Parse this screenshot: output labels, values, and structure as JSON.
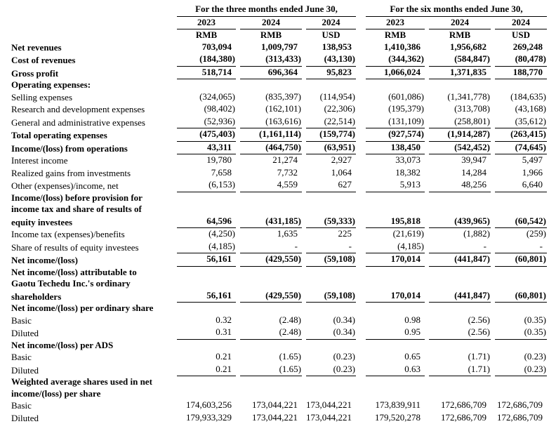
{
  "page": {
    "background_color": "#ffffff",
    "text_color": "#000000",
    "rule_color": "#000000"
  },
  "table": {
    "header": {
      "groups": [
        {
          "title": "For the three months ended June 30,"
        },
        {
          "title": "For the six months ended June 30,"
        }
      ],
      "years": [
        "2023",
        "2024",
        "2024",
        "2023",
        "2024",
        "2024"
      ],
      "currencies": [
        "RMB",
        "RMB",
        "USD",
        "RMB",
        "RMB",
        "USD"
      ]
    },
    "rows": [
      {
        "label": "Net revenues",
        "bold": true,
        "rule": false,
        "values": [
          "703,094",
          "1,009,797",
          "138,953",
          "1,410,386",
          "1,956,682",
          "269,248"
        ]
      },
      {
        "label": "Cost of revenues",
        "bold": true,
        "rule": true,
        "values": [
          "(184,380)",
          "(313,433)",
          "(43,130)",
          "(344,362)",
          "(584,847)",
          "(80,478)"
        ]
      },
      {
        "label": "Gross profit",
        "bold": true,
        "rule": true,
        "values": [
          "518,714",
          "696,364",
          "95,823",
          "1,066,024",
          "1,371,835",
          "188,770"
        ]
      },
      {
        "label": "Operating expenses:",
        "bold": true,
        "rule": false
      },
      {
        "label": "Selling expenses",
        "bold": false,
        "rule": false,
        "values": [
          "(324,065)",
          "(835,397)",
          "(114,954)",
          "(601,086)",
          "(1,341,778)",
          "(184,635)"
        ]
      },
      {
        "label": "Research and development expenses",
        "bold": false,
        "rule": false,
        "values": [
          "(98,402)",
          "(162,101)",
          "(22,306)",
          "(195,379)",
          "(313,708)",
          "(43,168)"
        ]
      },
      {
        "label": "General and administrative expenses",
        "bold": false,
        "rule": true,
        "values": [
          "(52,936)",
          "(163,616)",
          "(22,514)",
          "(131,109)",
          "(258,801)",
          "(35,612)"
        ]
      },
      {
        "label": "Total operating expenses",
        "bold": true,
        "rule": true,
        "values": [
          "(475,403)",
          "(1,161,114)",
          "(159,774)",
          "(927,574)",
          "(1,914,287)",
          "(263,415)"
        ]
      },
      {
        "label": "Income/(loss) from operations",
        "bold": true,
        "rule": true,
        "values": [
          "43,311",
          "(464,750)",
          "(63,951)",
          "138,450",
          "(542,452)",
          "(74,645)"
        ]
      },
      {
        "label": "Interest income",
        "bold": false,
        "rule": false,
        "values": [
          "19,780",
          "21,274",
          "2,927",
          "33,073",
          "39,947",
          "5,497"
        ]
      },
      {
        "label": "Realized gains from investments",
        "bold": false,
        "rule": false,
        "values": [
          "7,658",
          "7,732",
          "1,064",
          "18,382",
          "14,284",
          "1,966"
        ]
      },
      {
        "label": "Other (expenses)/income, net",
        "bold": false,
        "rule": true,
        "values": [
          "(6,153)",
          "4,559",
          "627",
          "5,913",
          "48,256",
          "6,640"
        ]
      },
      {
        "label": "Income/(loss) before provision for",
        "bold": true
      },
      {
        "label": "income tax and share of results of",
        "bold": true
      },
      {
        "label": "equity investees",
        "bold": true,
        "rule": true,
        "values": [
          "64,596",
          "(431,185)",
          "(59,333)",
          "195,818",
          "(439,965)",
          "(60,542)"
        ]
      },
      {
        "label": "Income tax (expenses)/benefits",
        "bold": false,
        "rule": false,
        "values": [
          "(4,250)",
          "1,635",
          "225",
          "(21,619)",
          "(1,882)",
          "(259)"
        ]
      },
      {
        "label": "Share of results of equity investees",
        "bold": false,
        "rule": true,
        "values": [
          "(4,185)",
          "-",
          "-",
          "(4,185)",
          "-",
          "-"
        ]
      },
      {
        "label": "Net income/(loss)",
        "bold": true,
        "rule": true,
        "values": [
          "56,161",
          "(429,550)",
          "(59,108)",
          "170,014",
          "(441,847)",
          "(60,801)"
        ]
      },
      {
        "label": "Net income/(loss) attributable to",
        "bold": true
      },
      {
        "label": "Gaotu Techedu Inc.'s ordinary",
        "bold": true
      },
      {
        "label": "shareholders",
        "bold": true,
        "rule": true,
        "values": [
          "56,161",
          "(429,550)",
          "(59,108)",
          "170,014",
          "(441,847)",
          "(60,801)"
        ]
      },
      {
        "label": "Net income/(loss) per ordinary share",
        "bold": true
      },
      {
        "label": "Basic",
        "bold": false,
        "rule": false,
        "values": [
          "0.32",
          "(2.48)",
          "(0.34)",
          "0.98",
          "(2.56)",
          "(0.35)"
        ]
      },
      {
        "label": "Diluted",
        "bold": false,
        "rule": true,
        "values": [
          "0.31",
          "(2.48)",
          "(0.34)",
          "0.95",
          "(2.56)",
          "(0.35)"
        ]
      },
      {
        "label": "Net income/(loss) per ADS",
        "bold": true
      },
      {
        "label": "Basic",
        "bold": false,
        "rule": false,
        "values": [
          "0.21",
          "(1.65)",
          "(0.23)",
          "0.65",
          "(1.71)",
          "(0.23)"
        ]
      },
      {
        "label": "Diluted",
        "bold": false,
        "rule": true,
        "values": [
          "0.21",
          "(1.65)",
          "(0.23)",
          "0.63",
          "(1.71)",
          "(0.23)"
        ]
      },
      {
        "label": "Weighted average shares used in net",
        "bold": true
      },
      {
        "label": "income/(loss) per share",
        "bold": true
      },
      {
        "label": "Basic",
        "bold": false,
        "rule": false,
        "values": [
          "174,603,256",
          "173,044,221",
          "173,044,221",
          "173,839,911",
          "172,686,709",
          "172,686,709"
        ]
      },
      {
        "label": "Diluted",
        "bold": false,
        "rule": false,
        "values": [
          "179,933,329",
          "173,044,221",
          "173,044,221",
          "179,520,278",
          "172,686,709",
          "172,686,709"
        ]
      }
    ]
  }
}
